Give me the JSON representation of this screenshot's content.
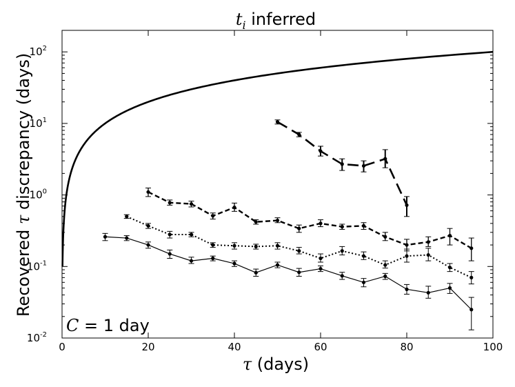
{
  "chart_data": {
    "type": "line",
    "title": {
      "prefix": "t",
      "sub": "i",
      "rest": " inferred"
    },
    "xlabel": {
      "sym": "τ",
      "rest": " (days)"
    },
    "ylabel": {
      "pre": "Recovered ",
      "sym": "τ",
      "rest": " discrepancy (days)"
    },
    "xlim": [
      0,
      100
    ],
    "ylim": [
      0.01,
      200
    ],
    "yscale": "log",
    "grid": false,
    "x_ticks": [
      "0",
      "20",
      "40",
      "60",
      "80",
      "100"
    ],
    "x_tick_values": [
      0,
      20,
      40,
      60,
      80,
      100
    ],
    "y_ticks": [
      {
        "value": 0.01,
        "base": "10",
        "exp": "-2"
      },
      {
        "value": 0.1,
        "base": "10",
        "exp": "-1"
      },
      {
        "value": 1,
        "base": "10",
        "exp": "0"
      },
      {
        "value": 10,
        "base": "10",
        "exp": "1"
      },
      {
        "value": 100,
        "base": "10",
        "exp": "2"
      }
    ],
    "annotation": {
      "sym": "C",
      "rest": " = 1 day"
    },
    "curve": {
      "style": "solid-thick",
      "x_start": 0,
      "x_end": 100,
      "note": "y = x"
    },
    "series": [
      {
        "style": "solid",
        "x": [
          10,
          15,
          20,
          25,
          30,
          35,
          40,
          45,
          50,
          55,
          60,
          65,
          70,
          75,
          80,
          85,
          90,
          95
        ],
        "y": [
          0.26,
          0.25,
          0.2,
          0.15,
          0.12,
          0.13,
          0.11,
          0.082,
          0.105,
          0.083,
          0.093,
          0.074,
          0.06,
          0.073,
          0.048,
          0.043,
          0.05,
          0.025
        ],
        "err_lo": [
          0.23,
          0.23,
          0.18,
          0.13,
          0.11,
          0.12,
          0.1,
          0.073,
          0.096,
          0.073,
          0.085,
          0.066,
          0.052,
          0.066,
          0.041,
          0.036,
          0.042,
          0.013
        ],
        "err_hi": [
          0.29,
          0.27,
          0.22,
          0.17,
          0.135,
          0.14,
          0.12,
          0.092,
          0.115,
          0.094,
          0.102,
          0.083,
          0.068,
          0.08,
          0.056,
          0.053,
          0.058,
          0.037
        ]
      },
      {
        "style": "dotted",
        "x": [
          15,
          20,
          25,
          30,
          35,
          40,
          45,
          50,
          55,
          60,
          65,
          70,
          75,
          80,
          85,
          90,
          95
        ],
        "y": [
          0.5,
          0.37,
          0.28,
          0.28,
          0.2,
          0.195,
          0.19,
          0.195,
          0.165,
          0.13,
          0.165,
          0.14,
          0.105,
          0.14,
          0.145,
          0.097,
          0.07
        ],
        "err_lo": [
          0.47,
          0.34,
          0.25,
          0.26,
          0.185,
          0.175,
          0.175,
          0.175,
          0.15,
          0.115,
          0.145,
          0.125,
          0.095,
          0.115,
          0.12,
          0.085,
          0.057
        ],
        "err_hi": [
          0.53,
          0.4,
          0.31,
          0.3,
          0.215,
          0.215,
          0.205,
          0.215,
          0.185,
          0.15,
          0.19,
          0.16,
          0.12,
          0.175,
          0.18,
          0.11,
          0.085
        ]
      },
      {
        "style": "dashed-short",
        "x": [
          20,
          25,
          30,
          35,
          40,
          45,
          50,
          55,
          60,
          65,
          70,
          75,
          80,
          85,
          90,
          95
        ],
        "y": [
          1.1,
          0.78,
          0.75,
          0.51,
          0.67,
          0.42,
          0.44,
          0.34,
          0.4,
          0.36,
          0.37,
          0.26,
          0.2,
          0.22,
          0.27,
          0.18
        ],
        "err_lo": [
          0.95,
          0.72,
          0.68,
          0.46,
          0.59,
          0.39,
          0.41,
          0.3,
          0.36,
          0.33,
          0.33,
          0.23,
          0.165,
          0.19,
          0.2,
          0.12
        ],
        "err_hi": [
          1.25,
          0.85,
          0.82,
          0.56,
          0.77,
          0.45,
          0.48,
          0.38,
          0.45,
          0.39,
          0.41,
          0.3,
          0.24,
          0.26,
          0.34,
          0.25
        ]
      },
      {
        "style": "dashed-long",
        "x": [
          50,
          55,
          60,
          65,
          70,
          75,
          80
        ],
        "y": [
          10.5,
          7.0,
          4.1,
          2.7,
          2.55,
          3.2,
          0.72
        ],
        "err_lo": [
          9.8,
          6.5,
          3.5,
          2.2,
          2.1,
          2.4,
          0.5
        ],
        "err_hi": [
          11.2,
          7.5,
          4.8,
          3.2,
          3.0,
          4.3,
          0.95
        ]
      }
    ]
  }
}
